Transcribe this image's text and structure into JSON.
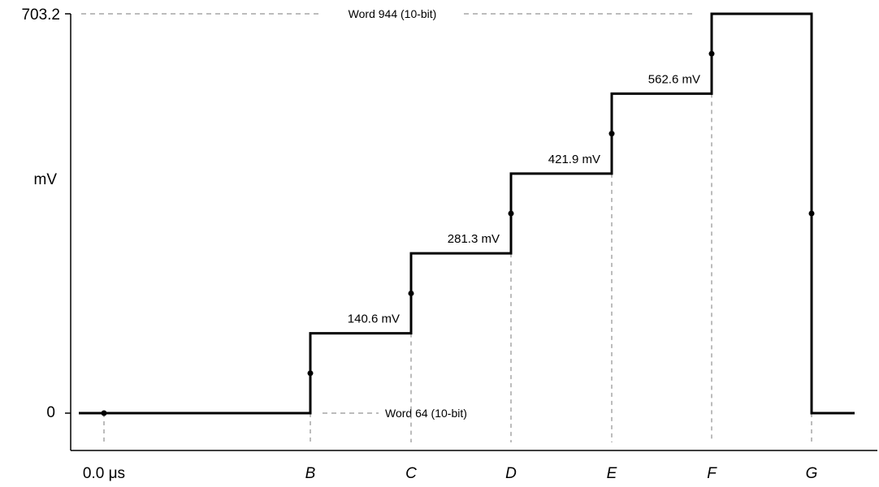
{
  "chart_data": {
    "type": "line",
    "y_axis": {
      "top_label": "703.2",
      "mid_label": "mV",
      "bottom_label": "0",
      "range_mv": [
        0,
        703.2
      ]
    },
    "x_axis": {
      "tick_labels": [
        {
          "text": "0.0 μs",
          "italic": false
        },
        {
          "text": "B",
          "italic": true
        },
        {
          "text": "C",
          "italic": true
        },
        {
          "text": "D",
          "italic": true
        },
        {
          "text": "E",
          "italic": true
        },
        {
          "text": "F",
          "italic": true
        },
        {
          "text": "G",
          "italic": true
        }
      ]
    },
    "reference_lines": {
      "top": "Word 944 (10-bit)",
      "bottom": "Word 64 (10-bit)"
    },
    "steps": [
      {
        "level_mv": 0,
        "label": ""
      },
      {
        "level_mv": 140.6,
        "label": "140.6 mV"
      },
      {
        "level_mv": 281.3,
        "label": "281.3 mV"
      },
      {
        "level_mv": 421.9,
        "label": "421.9 mV"
      },
      {
        "level_mv": 562.6,
        "label": "562.6 mV"
      },
      {
        "level_mv": 703.2,
        "label": ""
      },
      {
        "level_mv": 0,
        "label": ""
      }
    ],
    "transition_dots_mv": [
      0,
      70.3,
      210.9,
      351.6,
      492.2,
      632.9,
      351.6
    ]
  }
}
